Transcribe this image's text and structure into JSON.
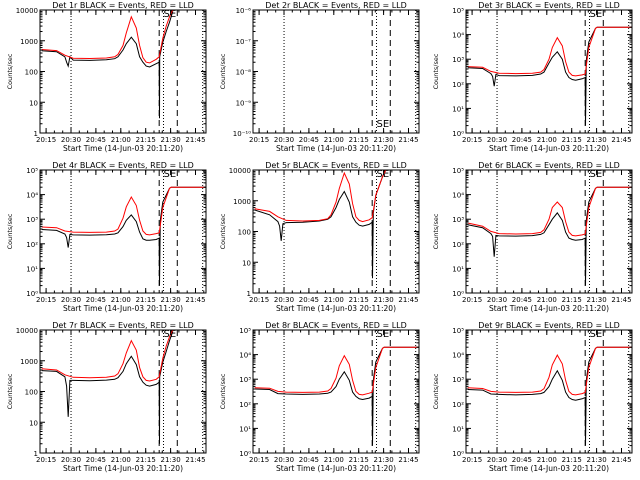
{
  "colors": {
    "events": "#000000",
    "lld": "#ff0000",
    "axis": "#000000",
    "background": "#ffffff"
  },
  "common": {
    "xlabel": "Start Time (14-Jun-03 20:11:20)",
    "ylabel": "Counts/sec",
    "x_ticks": [
      "20:15",
      "20:30",
      "20:45",
      "21:00",
      "21:15",
      "21:30",
      "21:45"
    ],
    "x_tick_minutes": [
      3.67,
      18.67,
      33.67,
      48.67,
      63.67,
      78.67,
      93.67
    ],
    "x_range_minutes": [
      0,
      100
    ],
    "time_origin": "20:11:20",
    "dotted_lines_minutes": [
      18.7,
      74.4,
      98.0
    ],
    "dashed_lines_minutes": [
      71.8,
      82.7
    ],
    "se_label": "SE",
    "se_minute": 78.2
  },
  "chart_data": [
    {
      "type": "line",
      "title": "Det 1r BLACK = Events, RED = LLD",
      "yscale": "log",
      "ylim": [
        1,
        10000
      ],
      "y_ticks": [
        "1",
        "10",
        "100",
        "1000",
        "10000"
      ],
      "y_tick_values": [
        1,
        10,
        100,
        1000,
        10000
      ],
      "series": [
        {
          "name": "Events",
          "x": [
            1,
            10,
            15,
            16,
            17,
            18,
            20,
            30,
            40,
            45,
            47,
            50,
            52,
            55,
            58,
            60,
            62,
            64,
            66,
            70,
            71.8,
            72,
            72.1,
            74,
            76,
            78,
            80
          ],
          "y": [
            470,
            440,
            300,
            200,
            150,
            300,
            235,
            230,
            240,
            260,
            300,
            500,
            800,
            1300,
            800,
            300,
            200,
            150,
            140,
            180,
            200,
            3,
            300,
            900,
            2000,
            4000,
            9000
          ]
        },
        {
          "name": "LLD",
          "x": [
            1,
            10,
            15,
            20,
            30,
            40,
            45,
            47,
            50,
            52,
            55,
            58,
            60,
            62,
            64,
            66,
            70,
            71.8,
            74,
            76,
            78,
            80
          ],
          "y": [
            520,
            480,
            340,
            270,
            265,
            275,
            300,
            360,
            700,
            1800,
            6000,
            2600,
            700,
            280,
            200,
            190,
            250,
            300,
            1200,
            3000,
            6000,
            10000
          ]
        }
      ]
    },
    {
      "type": "line",
      "title": "Det 2r BLACK = Events, RED = LLD",
      "yscale": "log",
      "ylim": [
        1e-10,
        1e-06
      ],
      "y_ticks": [
        "10⁻¹⁰",
        "10⁻⁹",
        "10⁻⁸",
        "10⁻⁷",
        "10⁻⁶"
      ],
      "y_tick_values": [
        1e-10,
        1e-09,
        1e-08,
        1e-07,
        1e-06
      ],
      "series": []
    },
    {
      "type": "line",
      "title": "Det 3r BLACK = Events, RED = LLD",
      "yscale": "log",
      "ylim": [
        1,
        100000
      ],
      "y_ticks": [
        "10⁰",
        "10¹",
        "10²",
        "10³",
        "10⁴",
        "10⁵"
      ],
      "y_tick_values": [
        1,
        10,
        100,
        1000,
        10000,
        100000
      ],
      "series": [
        {
          "name": "Events",
          "x": [
            1,
            10,
            15,
            16,
            17,
            18,
            20,
            30,
            40,
            45,
            47,
            50,
            52,
            55,
            58,
            60,
            62,
            64,
            66,
            70,
            71.8,
            72,
            72.5,
            74,
            78,
            79,
            100
          ],
          "y": [
            450,
            420,
            260,
            200,
            80,
            240,
            215,
            210,
            220,
            250,
            300,
            700,
            1200,
            2000,
            1000,
            300,
            180,
            150,
            140,
            160,
            180,
            2,
            900,
            5000,
            18000,
            20000,
            20000
          ]
        },
        {
          "name": "LLD",
          "x": [
            1,
            10,
            15,
            20,
            30,
            40,
            45,
            47,
            50,
            52,
            55,
            58,
            60,
            62,
            64,
            66,
            70,
            71.8,
            74,
            78,
            79,
            100
          ],
          "y": [
            500,
            470,
            320,
            270,
            260,
            270,
            300,
            380,
            1000,
            3000,
            7500,
            3500,
            800,
            300,
            220,
            210,
            230,
            250,
            3000,
            18000,
            20000,
            20000
          ]
        }
      ]
    },
    {
      "type": "line",
      "title": "Det 4r BLACK = Events, RED = LLD",
      "yscale": "log",
      "ylim": [
        1,
        100000
      ],
      "y_ticks": [
        "10⁰",
        "10¹",
        "10²",
        "10³",
        "10⁴",
        "10⁵"
      ],
      "y_tick_values": [
        1,
        10,
        100,
        1000,
        10000,
        100000
      ],
      "series": [
        {
          "name": "Events",
          "x": [
            1,
            10,
            15,
            16,
            17,
            18,
            20,
            30,
            40,
            45,
            47,
            50,
            52,
            55,
            58,
            60,
            62,
            64,
            66,
            70,
            71.8,
            72,
            72.5,
            74,
            78,
            79,
            100
          ],
          "y": [
            380,
            350,
            250,
            180,
            70,
            240,
            230,
            225,
            235,
            250,
            280,
            500,
            900,
            1500,
            800,
            300,
            160,
            140,
            140,
            150,
            170,
            2,
            900,
            5000,
            18000,
            20000,
            20000
          ]
        },
        {
          "name": "LLD",
          "x": [
            1,
            10,
            15,
            20,
            30,
            40,
            45,
            47,
            50,
            52,
            55,
            58,
            60,
            62,
            64,
            66,
            70,
            71.8,
            74,
            78,
            79,
            100
          ],
          "y": [
            480,
            450,
            330,
            300,
            290,
            300,
            330,
            400,
            1100,
            3200,
            8000,
            3600,
            900,
            330,
            240,
            230,
            260,
            280,
            3000,
            18000,
            20000,
            20000
          ]
        }
      ]
    },
    {
      "type": "line",
      "title": "Det 5r BLACK = Events, RED = LLD",
      "yscale": "log",
      "ylim": [
        1,
        10000
      ],
      "y_ticks": [
        "1",
        "10",
        "100",
        "1000",
        "10000"
      ],
      "y_tick_values": [
        1,
        10,
        100,
        1000,
        10000
      ],
      "series": [
        {
          "name": "Events",
          "x": [
            1,
            10,
            15,
            16,
            17,
            18,
            20,
            30,
            40,
            45,
            47,
            50,
            52,
            55,
            58,
            60,
            62,
            64,
            66,
            70,
            71.8,
            72,
            72.5,
            74,
            78,
            80
          ],
          "y": [
            500,
            350,
            210,
            150,
            50,
            180,
            195,
            200,
            220,
            250,
            300,
            600,
            1100,
            2000,
            900,
            300,
            200,
            160,
            150,
            170,
            200,
            3,
            400,
            1500,
            6000,
            10000
          ]
        },
        {
          "name": "LLD",
          "x": [
            1,
            10,
            15,
            20,
            30,
            40,
            45,
            47,
            50,
            52,
            55,
            58,
            60,
            62,
            64,
            66,
            70,
            71.8,
            74,
            78,
            80
          ],
          "y": [
            550,
            450,
            300,
            230,
            220,
            230,
            260,
            350,
            900,
            2500,
            8000,
            3500,
            800,
            300,
            230,
            210,
            240,
            280,
            1500,
            6000,
            10000
          ]
        }
      ]
    },
    {
      "type": "line",
      "title": "Det 6r BLACK = Events, RED = LLD",
      "yscale": "log",
      "ylim": [
        1,
        100000
      ],
      "y_ticks": [
        "10⁰",
        "10¹",
        "10²",
        "10³",
        "10⁴",
        "10⁵"
      ],
      "y_tick_values": [
        1,
        10,
        100,
        1000,
        10000,
        100000
      ],
      "series": [
        {
          "name": "Events",
          "x": [
            1,
            10,
            15,
            16,
            17,
            18,
            20,
            30,
            40,
            45,
            47,
            50,
            52,
            55,
            58,
            60,
            62,
            64,
            66,
            70,
            71.8,
            72,
            72.5,
            74,
            78,
            79,
            100
          ],
          "y": [
            600,
            450,
            260,
            200,
            30,
            220,
            210,
            205,
            215,
            240,
            280,
            600,
            1000,
            1800,
            900,
            300,
            170,
            150,
            140,
            150,
            170,
            2,
            900,
            5000,
            18000,
            20000,
            20000
          ]
        },
        {
          "name": "LLD",
          "x": [
            1,
            10,
            15,
            20,
            30,
            40,
            45,
            47,
            50,
            52,
            55,
            58,
            60,
            62,
            64,
            66,
            70,
            71.8,
            74,
            78,
            79,
            100
          ],
          "y": [
            700,
            520,
            320,
            260,
            250,
            260,
            290,
            370,
            1000,
            3000,
            5000,
            3000,
            800,
            300,
            220,
            210,
            230,
            250,
            3000,
            18000,
            20000,
            20000
          ]
        }
      ]
    },
    {
      "type": "line",
      "title": "Det 7r BLACK = Events, RED = LLD",
      "yscale": "log",
      "ylim": [
        1,
        10000
      ],
      "y_ticks": [
        "1",
        "10",
        "100",
        "1000",
        "10000"
      ],
      "y_tick_values": [
        1,
        10,
        100,
        1000,
        10000
      ],
      "series": [
        {
          "name": "Events",
          "x": [
            1,
            10,
            15,
            16,
            17,
            18,
            20,
            30,
            40,
            45,
            47,
            50,
            52,
            55,
            58,
            60,
            62,
            64,
            66,
            70,
            71.8,
            72,
            72.1,
            74,
            76,
            78,
            80
          ],
          "y": [
            480,
            450,
            300,
            150,
            15,
            230,
            230,
            225,
            235,
            250,
            280,
            450,
            800,
            1400,
            750,
            300,
            200,
            160,
            150,
            170,
            200,
            2,
            300,
            900,
            2000,
            4500,
            9000
          ]
        },
        {
          "name": "LLD",
          "x": [
            1,
            10,
            15,
            20,
            30,
            40,
            45,
            47,
            50,
            52,
            55,
            58,
            60,
            62,
            64,
            66,
            70,
            71.8,
            74,
            76,
            78,
            80
          ],
          "y": [
            550,
            500,
            350,
            290,
            280,
            290,
            320,
            380,
            800,
            1800,
            4500,
            2200,
            600,
            300,
            230,
            220,
            250,
            300,
            1200,
            3000,
            6000,
            10000
          ]
        }
      ]
    },
    {
      "type": "line",
      "title": "Det 8r BLACK = Events, RED = LLD",
      "yscale": "log",
      "ylim": [
        1,
        100000
      ],
      "y_ticks": [
        "10⁰",
        "10¹",
        "10²",
        "10³",
        "10⁴",
        "10⁵"
      ],
      "y_tick_values": [
        1,
        10,
        100,
        1000,
        10000,
        100000
      ],
      "series": [
        {
          "name": "Events",
          "x": [
            1,
            10,
            15,
            20,
            30,
            40,
            45,
            47,
            50,
            52,
            55,
            58,
            60,
            62,
            64,
            66,
            70,
            71.8,
            72,
            72.5,
            74,
            78,
            79,
            100
          ],
          "y": [
            400,
            380,
            260,
            250,
            240,
            250,
            270,
            300,
            500,
            1000,
            2000,
            900,
            300,
            200,
            160,
            150,
            170,
            200,
            2,
            900,
            5000,
            18000,
            20000,
            20000
          ]
        },
        {
          "name": "LLD",
          "x": [
            1,
            10,
            15,
            20,
            30,
            40,
            45,
            47,
            50,
            52,
            55,
            58,
            60,
            62,
            64,
            66,
            70,
            71.8,
            74,
            78,
            79,
            100
          ],
          "y": [
            450,
            430,
            320,
            300,
            290,
            300,
            330,
            420,
            1100,
            3500,
            9000,
            4000,
            900,
            320,
            240,
            230,
            270,
            300,
            3000,
            18000,
            20000,
            20000
          ]
        }
      ]
    },
    {
      "type": "line",
      "title": "Det 9r BLACK = Events, RED = LLD",
      "yscale": "log",
      "ylim": [
        1,
        100000
      ],
      "y_ticks": [
        "10⁰",
        "10¹",
        "10²",
        "10³",
        "10⁴",
        "10⁵"
      ],
      "y_tick_values": [
        1,
        10,
        100,
        1000,
        10000,
        100000
      ],
      "series": [
        {
          "name": "Events",
          "x": [
            1,
            10,
            15,
            20,
            30,
            40,
            45,
            47,
            50,
            52,
            55,
            58,
            60,
            62,
            64,
            66,
            70,
            71.8,
            72,
            72.5,
            74,
            78,
            79,
            100
          ],
          "y": [
            380,
            360,
            250,
            240,
            230,
            240,
            260,
            290,
            500,
            1000,
            2200,
            900,
            300,
            180,
            150,
            140,
            160,
            180,
            2,
            900,
            5000,
            18000,
            20000,
            20000
          ]
        },
        {
          "name": "LLD",
          "x": [
            1,
            10,
            15,
            20,
            30,
            40,
            45,
            47,
            50,
            52,
            55,
            58,
            60,
            62,
            64,
            66,
            70,
            71.8,
            74,
            78,
            79,
            100
          ],
          "y": [
            450,
            420,
            320,
            300,
            290,
            300,
            330,
            410,
            1200,
            3800,
            9500,
            4200,
            900,
            320,
            240,
            230,
            260,
            290,
            3000,
            18000,
            20000,
            20000
          ]
        }
      ]
    }
  ]
}
